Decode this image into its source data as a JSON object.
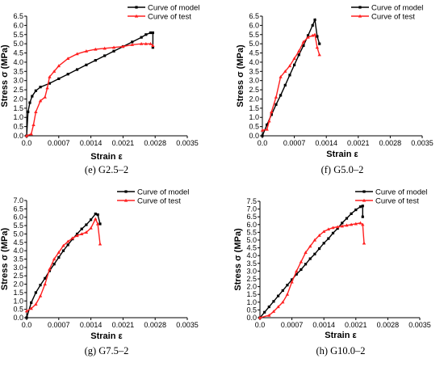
{
  "legend": {
    "model": "Curve of model",
    "test": "Curve of test"
  },
  "colors": {
    "model": "#000000",
    "test": "#ff2020"
  },
  "chart_data": [
    {
      "type": "line",
      "caption": "(e) G2.5–2",
      "xlabel": "Strain ε",
      "ylabel": "Stress σ (MPa)",
      "xlim": [
        0,
        0.0035
      ],
      "ylim": [
        0,
        6.5
      ],
      "xticks": [
        "0.0",
        "0.0007",
        "0.0014",
        "0.0021",
        "0.0028",
        "0.0035"
      ],
      "yticks": [
        "0.0",
        "0.5",
        "1.0",
        "1.5",
        "2.0",
        "2.5",
        "3.0",
        "3.5",
        "4.0",
        "4.5",
        "5.0",
        "5.5",
        "6.0",
        "6.5"
      ],
      "legend_position": "top-right",
      "series": [
        {
          "key": "model",
          "name": "Curve of model",
          "x": [
            0,
            3e-05,
            7e-05,
            0.00012,
            0.0002,
            0.0003,
            0.0005,
            0.0007,
            0.0009,
            0.0011,
            0.0013,
            0.0015,
            0.0017,
            0.0019,
            0.0021,
            0.0023,
            0.0025,
            0.0026,
            0.0027,
            0.00275,
            0.00275
          ],
          "y": [
            0,
            1.3,
            1.8,
            2.15,
            2.45,
            2.65,
            2.85,
            3.1,
            3.35,
            3.6,
            3.85,
            4.1,
            4.35,
            4.6,
            4.85,
            5.1,
            5.35,
            5.5,
            5.6,
            5.6,
            4.8
          ]
        },
        {
          "key": "test",
          "name": "Curve of test",
          "x": [
            0,
            0.0001,
            0.00015,
            0.0002,
            0.0003,
            0.0004,
            0.00045,
            0.0005,
            0.0006,
            0.0007,
            0.0009,
            0.0011,
            0.0013,
            0.0015,
            0.0017,
            0.0019,
            0.0021,
            0.0023,
            0.0025,
            0.0026,
            0.0027,
            0.00275
          ],
          "y": [
            0,
            0.1,
            0.6,
            1.3,
            1.9,
            2.1,
            2.6,
            3.2,
            3.5,
            3.8,
            4.2,
            4.45,
            4.6,
            4.7,
            4.75,
            4.8,
            4.85,
            4.95,
            5.0,
            5.0,
            5.0,
            4.9
          ]
        }
      ]
    },
    {
      "type": "line",
      "caption": "(f) G5.0–2",
      "xlabel": "Strain ε",
      "ylabel": "Stress σ (MPa)",
      "xlim": [
        0,
        0.0035
      ],
      "ylim": [
        0,
        6.5
      ],
      "xticks": [
        "0.0",
        "0.0007",
        "0.0014",
        "0.0021",
        "0.0028",
        "0.0035"
      ],
      "yticks": [
        "0.0",
        "0.5",
        "1.0",
        "1.5",
        "2.0",
        "2.5",
        "3.0",
        "3.5",
        "4.0",
        "4.5",
        "5.0",
        "5.5",
        "6.0",
        "6.5"
      ],
      "legend_position": "top-right",
      "series": [
        {
          "key": "model",
          "name": "Curve of model",
          "x": [
            0,
            0.0001,
            0.0002,
            0.0003,
            0.0004,
            0.0005,
            0.0006,
            0.0007,
            0.0008,
            0.0009,
            0.001,
            0.0011,
            0.00115,
            0.0012,
            0.00125
          ],
          "y": [
            0,
            0.6,
            1.15,
            1.7,
            2.2,
            2.75,
            3.3,
            3.85,
            4.4,
            4.9,
            5.45,
            6.0,
            6.3,
            5.4,
            5.0
          ]
        },
        {
          "key": "test",
          "name": "Curve of test",
          "x": [
            0,
            0.0001,
            0.00015,
            0.0002,
            0.0003,
            0.0004,
            0.0005,
            0.0006,
            0.0007,
            0.0008,
            0.0009,
            0.001,
            0.0011,
            0.00115,
            0.0012,
            0.00125
          ],
          "y": [
            0.3,
            0.35,
            0.8,
            1.3,
            2.1,
            3.2,
            3.5,
            3.8,
            4.2,
            4.6,
            5.1,
            5.35,
            5.45,
            5.5,
            4.8,
            4.4
          ]
        }
      ]
    },
    {
      "type": "line",
      "caption": "(g) G7.5–2",
      "xlabel": "Strain ε",
      "ylabel": "Stress σ (MPa)",
      "xlim": [
        0,
        0.0035
      ],
      "ylim": [
        0,
        7.0
      ],
      "xticks": [
        "0.0",
        "0.0007",
        "0.0014",
        "0.0021",
        "0.0028",
        "0.0035"
      ],
      "yticks": [
        "0.0",
        "0.5",
        "1.0",
        "1.5",
        "2.0",
        "2.5",
        "3.0",
        "3.5",
        "4.0",
        "4.5",
        "5.0",
        "5.5",
        "6.0",
        "6.5",
        "7.0"
      ],
      "legend_position": "top-right",
      "series": [
        {
          "key": "model",
          "name": "Curve of model",
          "x": [
            0,
            0.0001,
            0.0002,
            0.0003,
            0.0004,
            0.0005,
            0.0006,
            0.0007,
            0.0008,
            0.0009,
            0.001,
            0.0011,
            0.0012,
            0.0013,
            0.0014,
            0.0015,
            0.00155,
            0.0016
          ],
          "y": [
            0,
            0.9,
            1.5,
            1.95,
            2.35,
            2.8,
            3.2,
            3.6,
            4.0,
            4.35,
            4.7,
            5.0,
            5.3,
            5.55,
            5.85,
            6.2,
            6.15,
            5.6
          ]
        },
        {
          "key": "test",
          "name": "Curve of test",
          "x": [
            0,
            0.0001,
            0.0002,
            0.0003,
            0.0004,
            0.0005,
            0.0006,
            0.0007,
            0.0008,
            0.0009,
            0.001,
            0.0011,
            0.0012,
            0.0013,
            0.0014,
            0.0015,
            0.00155,
            0.0016
          ],
          "y": [
            0.4,
            0.55,
            0.8,
            1.3,
            2.0,
            2.9,
            3.5,
            3.9,
            4.3,
            4.55,
            4.75,
            4.9,
            5.0,
            5.1,
            5.35,
            5.9,
            5.6,
            4.4
          ]
        }
      ]
    },
    {
      "type": "line",
      "caption": "(h) G10.0–2",
      "xlabel": "Strain ε",
      "ylabel": "Stress σ (MPa)",
      "xlim": [
        0,
        0.0035
      ],
      "ylim": [
        0,
        7.5
      ],
      "xticks": [
        "0.0",
        "0.0007",
        "0.0014",
        "0.0021",
        "0.0028",
        "0.0035"
      ],
      "yticks": [
        "0.0",
        "0.5",
        "1.0",
        "1.5",
        "2.0",
        "2.5",
        "3.0",
        "3.5",
        "4.0",
        "4.5",
        "5.0",
        "5.5",
        "6.0",
        "6.5",
        "7.0",
        "7.5"
      ],
      "legend_position": "top-right",
      "series": [
        {
          "key": "model",
          "name": "Curve of model",
          "x": [
            0,
            0.0001,
            0.0002,
            0.0003,
            0.0004,
            0.0005,
            0.0006,
            0.0007,
            0.0008,
            0.0009,
            0.001,
            0.0011,
            0.0012,
            0.0013,
            0.0014,
            0.0015,
            0.0016,
            0.0017,
            0.0018,
            0.0019,
            0.002,
            0.0021,
            0.0022,
            0.00225,
            0.00225
          ],
          "y": [
            0,
            0.35,
            0.7,
            1.05,
            1.4,
            1.75,
            2.1,
            2.45,
            2.8,
            3.1,
            3.45,
            3.8,
            4.1,
            4.45,
            4.8,
            5.1,
            5.45,
            5.75,
            6.1,
            6.4,
            6.7,
            6.95,
            7.15,
            7.2,
            6.5
          ]
        },
        {
          "key": "test",
          "name": "Curve of test",
          "x": [
            0,
            0.0002,
            0.0003,
            0.0004,
            0.0005,
            0.0006,
            0.0007,
            0.0008,
            0.0009,
            0.001,
            0.0011,
            0.0012,
            0.0013,
            0.0014,
            0.0015,
            0.0016,
            0.0017,
            0.0018,
            0.0019,
            0.002,
            0.0021,
            0.0022,
            0.00225,
            0.00228
          ],
          "y": [
            0,
            0.15,
            0.4,
            0.7,
            1.0,
            1.5,
            2.3,
            3.0,
            3.6,
            4.2,
            4.6,
            5.0,
            5.3,
            5.55,
            5.7,
            5.8,
            5.85,
            5.9,
            5.95,
            6.0,
            6.05,
            6.1,
            6.0,
            4.8
          ]
        }
      ]
    }
  ]
}
